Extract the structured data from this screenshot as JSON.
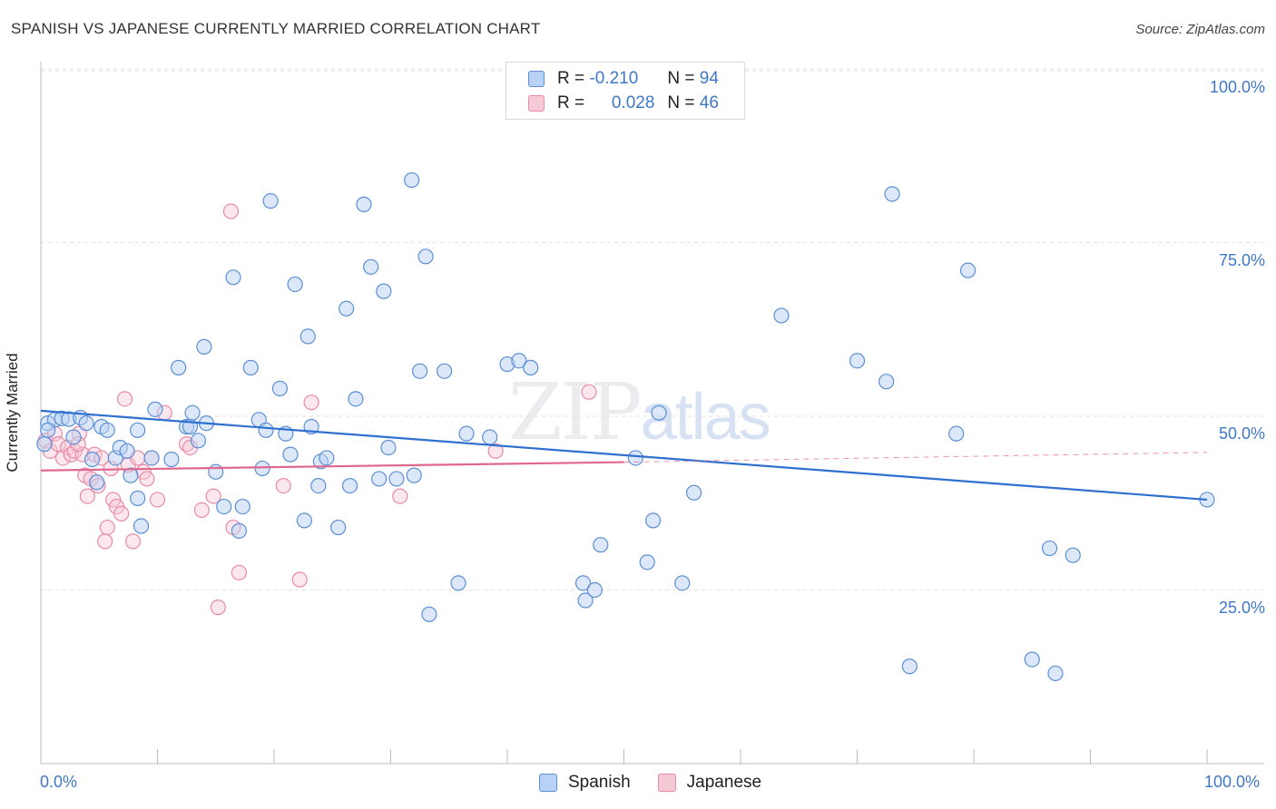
{
  "title": "SPANISH VS JAPANESE CURRENTLY MARRIED CORRELATION CHART",
  "source": "Source: ZipAtlas.com",
  "watermark": {
    "zip": "ZIP",
    "atlas": "atlas"
  },
  "colors": {
    "spanish_fill": "#b9d2f3",
    "spanish_stroke": "#5a8fd6",
    "spanish_line": "#2f6fcf",
    "japanese_fill": "#f6c9d6",
    "japanese_stroke": "#e98aa8",
    "japanese_line": "#e0668f",
    "tick_text": "#3f78c8"
  },
  "legend": {
    "rows": [
      {
        "r_label": "R =",
        "r_value": "-0.210",
        "n_label": "N =",
        "n_value": "94"
      },
      {
        "r_label": "R =",
        "r_value": "0.028",
        "n_label": "N =",
        "n_value": "46"
      }
    ],
    "bottom": [
      "Spanish",
      "Japanese"
    ]
  },
  "chart_data": {
    "type": "scatter",
    "title": "SPANISH VS JAPANESE CURRENTLY MARRIED CORRELATION CHART",
    "xlabel": "",
    "ylabel": "Currently Married",
    "xlim": [
      0,
      100
    ],
    "ylim": [
      0,
      102
    ],
    "x_tick_labels": [
      "0.0%",
      "100.0%"
    ],
    "y_tick_labels": [
      "25.0%",
      "50.0%",
      "75.0%",
      "100.0%"
    ],
    "y_ticks": [
      25,
      50,
      75,
      100
    ],
    "grid": true,
    "legend_position": "top-center",
    "series": [
      {
        "name": "Spanish",
        "r": -0.21,
        "n": 94,
        "trend": {
          "x": [
            0,
            100
          ],
          "y": [
            50.8,
            38.0
          ]
        },
        "points": [
          [
            0.3,
            46.0
          ],
          [
            0.6,
            49.0
          ],
          [
            1.2,
            49.5
          ],
          [
            1.8,
            49.7
          ],
          [
            2.4,
            49.6
          ],
          [
            2.8,
            47.0
          ],
          [
            3.4,
            49.8
          ],
          [
            3.9,
            49.0
          ],
          [
            4.4,
            43.8
          ],
          [
            4.8,
            40.5
          ],
          [
            5.2,
            48.5
          ],
          [
            5.7,
            48.0
          ],
          [
            6.4,
            44.0
          ],
          [
            6.8,
            45.5
          ],
          [
            7.4,
            45.0
          ],
          [
            7.7,
            41.5
          ],
          [
            8.3,
            38.2
          ],
          [
            8.6,
            34.2
          ],
          [
            8.3,
            48.0
          ],
          [
            9.5,
            44.0
          ],
          [
            9.8,
            51.0
          ],
          [
            11.2,
            43.8
          ],
          [
            11.8,
            57.0
          ],
          [
            12.5,
            48.5
          ],
          [
            13.0,
            50.5
          ],
          [
            12.8,
            48.5
          ],
          [
            13.5,
            46.5
          ],
          [
            14.0,
            60.0
          ],
          [
            14.2,
            49.0
          ],
          [
            15.0,
            42.0
          ],
          [
            15.7,
            37.0
          ],
          [
            16.5,
            70.0
          ],
          [
            17.0,
            33.5
          ],
          [
            17.3,
            37.0
          ],
          [
            18.0,
            57.0
          ],
          [
            18.7,
            49.5
          ],
          [
            19.0,
            42.5
          ],
          [
            19.3,
            48.0
          ],
          [
            19.7,
            81.0
          ],
          [
            20.5,
            54.0
          ],
          [
            21.0,
            47.5
          ],
          [
            21.4,
            44.5
          ],
          [
            21.8,
            69.0
          ],
          [
            22.6,
            35.0
          ],
          [
            22.9,
            61.5
          ],
          [
            23.2,
            48.5
          ],
          [
            23.8,
            40.0
          ],
          [
            24.0,
            43.5
          ],
          [
            24.5,
            44.0
          ],
          [
            25.5,
            34.0
          ],
          [
            26.2,
            65.5
          ],
          [
            26.5,
            40.0
          ],
          [
            27.0,
            52.5
          ],
          [
            27.7,
            80.5
          ],
          [
            28.3,
            71.5
          ],
          [
            29.0,
            41.0
          ],
          [
            29.4,
            68.0
          ],
          [
            29.8,
            45.5
          ],
          [
            30.5,
            41.0
          ],
          [
            31.8,
            84.0
          ],
          [
            32.0,
            41.5
          ],
          [
            32.5,
            56.5
          ],
          [
            33.0,
            73.0
          ],
          [
            33.3,
            21.5
          ],
          [
            34.6,
            56.5
          ],
          [
            35.8,
            26.0
          ],
          [
            36.5,
            47.5
          ],
          [
            38.5,
            47.0
          ],
          [
            40.0,
            57.5
          ],
          [
            41.0,
            58.0
          ],
          [
            42.0,
            57.0
          ],
          [
            46.5,
            26.0
          ],
          [
            46.7,
            23.5
          ],
          [
            47.5,
            25.0
          ],
          [
            48.0,
            31.5
          ],
          [
            51.0,
            44.0
          ],
          [
            52.0,
            29.0
          ],
          [
            52.5,
            35.0
          ],
          [
            53.0,
            50.5
          ],
          [
            55.0,
            26.0
          ],
          [
            56.0,
            39.0
          ],
          [
            63.5,
            64.5
          ],
          [
            70.0,
            58.0
          ],
          [
            72.5,
            55.0
          ],
          [
            73.0,
            82.0
          ],
          [
            74.5,
            14.0
          ],
          [
            78.5,
            47.5
          ],
          [
            79.5,
            71.0
          ],
          [
            85.0,
            15.0
          ],
          [
            86.5,
            31.0
          ],
          [
            87.0,
            13.0
          ],
          [
            88.5,
            30.0
          ],
          [
            100.0,
            38.0
          ],
          [
            0.6,
            48.0
          ]
        ]
      },
      {
        "name": "Japanese",
        "r": 0.028,
        "n": 46,
        "trend": {
          "x": [
            0,
            50
          ],
          "y": [
            42.2,
            43.4
          ]
        },
        "trend_dashed": {
          "x": [
            50,
            100
          ],
          "y": [
            43.4,
            44.8
          ]
        },
        "points": [
          [
            0.4,
            46.5
          ],
          [
            0.8,
            45.0
          ],
          [
            1.2,
            47.5
          ],
          [
            1.5,
            46.0
          ],
          [
            1.9,
            44.0
          ],
          [
            2.3,
            45.5
          ],
          [
            2.6,
            44.5
          ],
          [
            2.9,
            45.0
          ],
          [
            3.3,
            47.5
          ],
          [
            3.6,
            44.5
          ],
          [
            3.8,
            41.5
          ],
          [
            4.0,
            38.5
          ],
          [
            4.3,
            41.0
          ],
          [
            4.6,
            44.5
          ],
          [
            4.9,
            40.0
          ],
          [
            5.2,
            44.0
          ],
          [
            5.5,
            32.0
          ],
          [
            5.7,
            34.0
          ],
          [
            6.0,
            42.5
          ],
          [
            6.2,
            38.0
          ],
          [
            6.5,
            37.0
          ],
          [
            6.9,
            36.0
          ],
          [
            7.2,
            52.5
          ],
          [
            7.5,
            43.0
          ],
          [
            7.9,
            32.0
          ],
          [
            8.3,
            44.0
          ],
          [
            8.8,
            42.0
          ],
          [
            9.1,
            41.0
          ],
          [
            9.5,
            44.0
          ],
          [
            10.0,
            38.0
          ],
          [
            10.6,
            50.5
          ],
          [
            12.5,
            46.0
          ],
          [
            12.8,
            45.5
          ],
          [
            13.8,
            36.5
          ],
          [
            14.8,
            38.5
          ],
          [
            16.3,
            79.5
          ],
          [
            16.5,
            34.0
          ],
          [
            17.0,
            27.5
          ],
          [
            15.2,
            22.5
          ],
          [
            20.8,
            40.0
          ],
          [
            22.2,
            26.5
          ],
          [
            23.2,
            52.0
          ],
          [
            30.8,
            38.5
          ],
          [
            39.0,
            45.0
          ],
          [
            47.0,
            53.5
          ],
          [
            3.2,
            46.0
          ]
        ]
      }
    ]
  }
}
